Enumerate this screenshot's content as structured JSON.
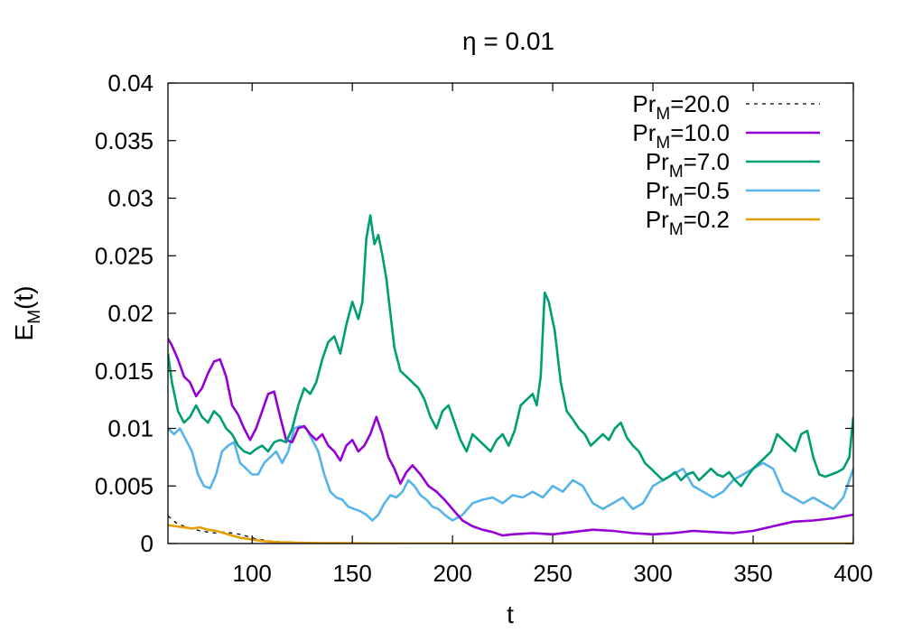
{
  "chart_data": {
    "type": "line",
    "title": "η = 0.01",
    "xlabel": "t",
    "ylabel": {
      "base": "E",
      "sub": "M",
      "rest": "(t)"
    },
    "xlim": [
      58,
      400
    ],
    "ylim": [
      0,
      0.04
    ],
    "xticks": [
      100,
      150,
      200,
      250,
      300,
      350,
      400
    ],
    "xtick_labels": [
      "100",
      "150",
      "200",
      "250",
      "300",
      "350",
      "400"
    ],
    "yticks": [
      0,
      0.005,
      0.01,
      0.015,
      0.02,
      0.025,
      0.03,
      0.035,
      0.04
    ],
    "ytick_labels": [
      "0",
      "0.005",
      "0.01",
      "0.015",
      "0.02",
      "0.025",
      "0.03",
      "0.035",
      "0.04"
    ],
    "grid": false,
    "legend_position": "top-right",
    "series": [
      {
        "name": "Pr_M=20.0",
        "legend": {
          "base": "Pr",
          "sub": "M",
          "rest": "=20.0"
        },
        "color": "#000000",
        "dashed": true,
        "x": [
          58,
          62,
          66,
          70,
          74,
          78,
          82,
          86,
          90,
          94,
          98,
          102,
          106,
          110,
          114,
          118,
          122,
          126,
          130,
          150,
          200,
          250,
          300,
          350,
          400
        ],
        "y": [
          0.0024,
          0.0018,
          0.0015,
          0.0013,
          0.0011,
          0.001,
          0.0009,
          0.001,
          0.0009,
          0.0008,
          0.0006,
          0.0004,
          0.0003,
          0.0002,
          0.00015,
          0.0001,
          0.0001,
          5e-05,
          3e-05,
          2e-05,
          1e-05,
          0.0,
          0.0,
          0.0,
          0.0
        ]
      },
      {
        "name": "Pr_M=10.0",
        "legend": {
          "base": "Pr",
          "sub": "M",
          "rest": "=10.0"
        },
        "color": "#9400d3",
        "dashed": false,
        "x": [
          58,
          60,
          63,
          66,
          69,
          72,
          75,
          78,
          81,
          84,
          87,
          90,
          93,
          96,
          99,
          102,
          105,
          108,
          111,
          114,
          117,
          120,
          123,
          126,
          129,
          132,
          135,
          138,
          141,
          144,
          147,
          150,
          153,
          156,
          159,
          162,
          165,
          168,
          171,
          174,
          177,
          180,
          184,
          188,
          192,
          196,
          200,
          205,
          210,
          215,
          220,
          225,
          230,
          240,
          250,
          260,
          270,
          280,
          290,
          300,
          310,
          320,
          330,
          340,
          350,
          360,
          370,
          380,
          390,
          400
        ],
        "y": [
          0.0178,
          0.0172,
          0.016,
          0.0145,
          0.014,
          0.0128,
          0.0135,
          0.0148,
          0.0158,
          0.016,
          0.0145,
          0.012,
          0.0112,
          0.01,
          0.009,
          0.01,
          0.0115,
          0.013,
          0.0132,
          0.011,
          0.009,
          0.0088,
          0.01,
          0.0102,
          0.0095,
          0.009,
          0.0095,
          0.0085,
          0.008,
          0.0072,
          0.0085,
          0.009,
          0.008,
          0.0085,
          0.0095,
          0.011,
          0.0095,
          0.0075,
          0.0065,
          0.0052,
          0.0062,
          0.0068,
          0.006,
          0.005,
          0.0045,
          0.0038,
          0.003,
          0.002,
          0.0015,
          0.0012,
          0.001,
          0.0007,
          0.0008,
          0.0009,
          0.0008,
          0.001,
          0.0012,
          0.0011,
          0.0009,
          0.0008,
          0.0009,
          0.0011,
          0.001,
          0.0009,
          0.0011,
          0.0015,
          0.0019,
          0.002,
          0.0022,
          0.0025
        ]
      },
      {
        "name": "Pr_M=7.0",
        "legend": {
          "base": "Pr",
          "sub": "M",
          "rest": "=7.0"
        },
        "color": "#009e73",
        "dashed": false,
        "x": [
          58,
          60,
          63,
          66,
          69,
          72,
          75,
          78,
          81,
          84,
          87,
          90,
          93,
          96,
          99,
          102,
          105,
          108,
          111,
          114,
          117,
          120,
          123,
          126,
          129,
          132,
          135,
          138,
          141,
          144,
          147,
          150,
          153,
          155,
          157,
          159,
          161,
          163,
          165,
          167,
          169,
          171,
          174,
          177,
          180,
          183,
          186,
          189,
          192,
          195,
          198,
          201,
          204,
          207,
          210,
          213,
          216,
          219,
          222,
          225,
          228,
          231,
          234,
          237,
          240,
          242,
          244,
          246,
          248,
          251,
          254,
          257,
          260,
          263,
          266,
          269,
          272,
          275,
          278,
          281,
          284,
          287,
          290,
          293,
          296,
          299,
          302,
          305,
          308,
          311,
          314,
          317,
          320,
          323,
          326,
          329,
          332,
          335,
          338,
          341,
          344,
          347,
          350,
          353,
          356,
          359,
          362,
          365,
          368,
          371,
          374,
          377,
          380,
          383,
          386,
          389,
          392,
          395,
          398,
          400
        ],
        "y": [
          0.0165,
          0.014,
          0.0115,
          0.0105,
          0.011,
          0.012,
          0.011,
          0.0105,
          0.0115,
          0.011,
          0.01,
          0.0095,
          0.0085,
          0.008,
          0.0078,
          0.0082,
          0.0085,
          0.008,
          0.0088,
          0.009,
          0.0088,
          0.01,
          0.012,
          0.0135,
          0.013,
          0.014,
          0.016,
          0.0175,
          0.018,
          0.0165,
          0.019,
          0.021,
          0.0195,
          0.021,
          0.0265,
          0.0285,
          0.026,
          0.0268,
          0.025,
          0.023,
          0.02,
          0.017,
          0.015,
          0.0145,
          0.014,
          0.0135,
          0.0125,
          0.011,
          0.01,
          0.0115,
          0.012,
          0.0105,
          0.009,
          0.008,
          0.0095,
          0.009,
          0.0085,
          0.008,
          0.009,
          0.0095,
          0.0085,
          0.0098,
          0.012,
          0.0125,
          0.013,
          0.012,
          0.0145,
          0.0218,
          0.021,
          0.0185,
          0.014,
          0.0115,
          0.0108,
          0.01,
          0.0095,
          0.0085,
          0.009,
          0.0095,
          0.009,
          0.01,
          0.0105,
          0.0092,
          0.0085,
          0.008,
          0.007,
          0.0065,
          0.006,
          0.0055,
          0.0058,
          0.0062,
          0.0055,
          0.006,
          0.0062,
          0.0055,
          0.006,
          0.0065,
          0.006,
          0.0058,
          0.0062,
          0.0055,
          0.005,
          0.0058,
          0.0065,
          0.007,
          0.0075,
          0.008,
          0.0095,
          0.009,
          0.0085,
          0.008,
          0.0095,
          0.0098,
          0.0075,
          0.006,
          0.0058,
          0.006,
          0.0062,
          0.0065,
          0.0075,
          0.011
        ]
      },
      {
        "name": "Pr_M=0.5",
        "legend": {
          "base": "Pr",
          "sub": "M",
          "rest": "=0.5"
        },
        "color": "#56b4e9",
        "dashed": false,
        "x": [
          58,
          61,
          64,
          67,
          70,
          73,
          76,
          79,
          82,
          85,
          88,
          91,
          94,
          97,
          100,
          103,
          106,
          109,
          112,
          115,
          118,
          121,
          124,
          127,
          130,
          133,
          136,
          139,
          142,
          145,
          148,
          151,
          154,
          157,
          160,
          163,
          166,
          169,
          172,
          175,
          178,
          181,
          184,
          187,
          190,
          193,
          196,
          200,
          205,
          210,
          215,
          220,
          225,
          230,
          235,
          240,
          245,
          250,
          255,
          260,
          265,
          270,
          275,
          280,
          285,
          290,
          295,
          300,
          305,
          310,
          315,
          320,
          325,
          330,
          335,
          340,
          345,
          350,
          355,
          360,
          365,
          370,
          375,
          380,
          385,
          390,
          395,
          400
        ],
        "y": [
          0.01,
          0.0095,
          0.01,
          0.009,
          0.008,
          0.006,
          0.005,
          0.0048,
          0.006,
          0.008,
          0.0085,
          0.0088,
          0.007,
          0.0065,
          0.006,
          0.006,
          0.007,
          0.0075,
          0.008,
          0.007,
          0.008,
          0.01,
          0.0102,
          0.01,
          0.009,
          0.008,
          0.006,
          0.0045,
          0.004,
          0.0038,
          0.0032,
          0.003,
          0.0028,
          0.0025,
          0.002,
          0.0025,
          0.0035,
          0.0042,
          0.004,
          0.0045,
          0.0055,
          0.005,
          0.0042,
          0.0038,
          0.0032,
          0.003,
          0.0025,
          0.002,
          0.0025,
          0.0035,
          0.0038,
          0.004,
          0.0035,
          0.0042,
          0.004,
          0.0045,
          0.004,
          0.005,
          0.0045,
          0.0055,
          0.005,
          0.0035,
          0.003,
          0.0035,
          0.004,
          0.003,
          0.0035,
          0.005,
          0.0055,
          0.006,
          0.0065,
          0.005,
          0.0045,
          0.004,
          0.0045,
          0.0055,
          0.006,
          0.0065,
          0.007,
          0.0065,
          0.0045,
          0.004,
          0.0035,
          0.004,
          0.0035,
          0.003,
          0.004,
          0.0065
        ]
      },
      {
        "name": "Pr_M=0.2",
        "legend": {
          "base": "Pr",
          "sub": "M",
          "rest": "=0.2"
        },
        "color": "#e69f00",
        "dashed": false,
        "x": [
          58,
          62,
          66,
          70,
          74,
          78,
          82,
          86,
          90,
          94,
          98,
          102,
          106,
          110,
          114,
          118,
          122,
          126,
          130,
          135,
          140,
          150,
          160,
          180,
          200,
          250,
          300,
          350,
          400
        ],
        "y": [
          0.0016,
          0.0015,
          0.0014,
          0.0013,
          0.0014,
          0.0012,
          0.0011,
          0.0009,
          0.0007,
          0.0005,
          0.0004,
          0.0003,
          0.0002,
          0.00015,
          0.0001,
          0.0001,
          8e-05,
          6e-05,
          5e-05,
          4e-05,
          3e-05,
          2e-05,
          1e-05,
          0.0,
          0.0,
          0.0,
          0.0,
          0.0,
          0.0
        ]
      }
    ]
  }
}
